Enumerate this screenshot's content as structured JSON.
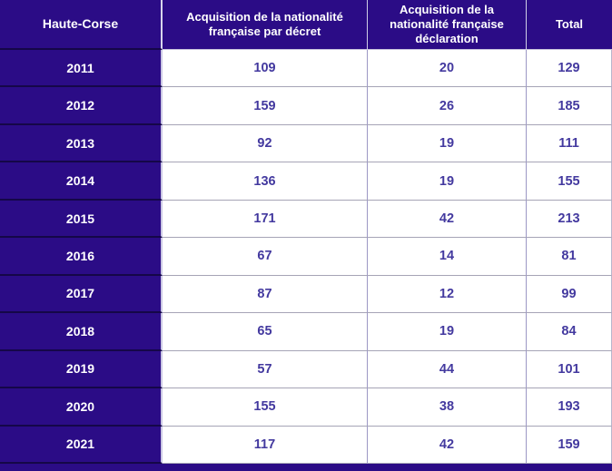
{
  "chart_data": {
    "type": "table",
    "title": "Haute-Corse",
    "columns": [
      "Haute-Corse",
      "Acquisition de la nationalité française par décret",
      "Acquisition de la nationalité française déclaration",
      "Total"
    ],
    "columns_display": [
      "Haute-Corse",
      "Acquisition de la nationalité\nfrançaise par décret",
      "Acquisition de la\nnationalité française\ndéclaration",
      "Total"
    ],
    "rows": [
      [
        "2011",
        109,
        20,
        129
      ],
      [
        "2012",
        159,
        26,
        185
      ],
      [
        "2013",
        92,
        19,
        111
      ],
      [
        "2014",
        136,
        19,
        155
      ],
      [
        "2015",
        171,
        42,
        213
      ],
      [
        "2016",
        67,
        14,
        81
      ],
      [
        "2017",
        87,
        12,
        99
      ],
      [
        "2018",
        65,
        19,
        84
      ],
      [
        "2019",
        57,
        44,
        101
      ],
      [
        "2020",
        155,
        38,
        193
      ],
      [
        "2021",
        117,
        42,
        159
      ]
    ]
  },
  "colors": {
    "header_background": "#2B0C86",
    "header_text": "#FFFFFF",
    "value_text": "#43399F",
    "cell_background": "#FFFFFF",
    "vertical_border": "#9C97C4",
    "horizontal_border": "#A6A4B6",
    "dark_row_separator": "#150748"
  }
}
